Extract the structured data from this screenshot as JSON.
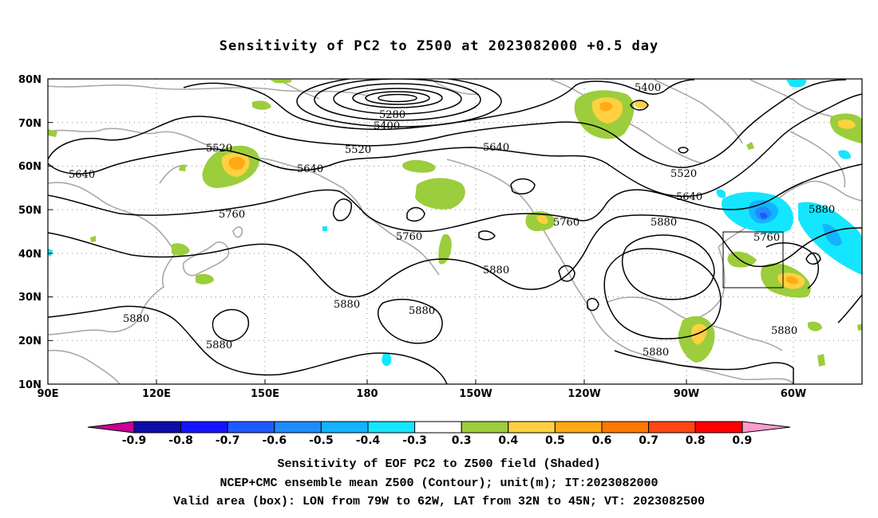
{
  "title": "Sensitivity of PC2 to Z500 at 2023082000 +0.5 day",
  "axes": {
    "lat_labels": [
      "80N",
      "70N",
      "60N",
      "50N",
      "40N",
      "30N",
      "20N",
      "10N"
    ],
    "lon_labels": [
      "90E",
      "120E",
      "150E",
      "180",
      "150W",
      "120W",
      "90W",
      "60W"
    ]
  },
  "contour_labels": {
    "c5280": "5280",
    "c5400a": "5400",
    "c5400b": "5400",
    "c5520a": "5520",
    "c5520b": "5520",
    "c5520c": "5520",
    "c5640a": "5640",
    "c5640b": "5640",
    "c5640c": "5640",
    "c5640d": "5640",
    "c5760a": "5760",
    "c5760b": "5760",
    "c5760c": "5760",
    "c5760d": "5760",
    "c5880a": "5880",
    "c5880b": "5880",
    "c5880c": "5880",
    "c5880d": "5880",
    "c5880e": "5880",
    "c5880f": "5880",
    "c5880g": "5880",
    "c5880h": "5880",
    "c5880i": "5880"
  },
  "colorbar": {
    "labels": [
      "-0.9",
      "-0.8",
      "-0.7",
      "-0.6",
      "-0.5",
      "-0.4",
      "-0.3",
      "0.3",
      "0.4",
      "0.5",
      "0.6",
      "0.7",
      "0.8",
      "0.9"
    ],
    "colors": [
      "#0d0da8",
      "#1414ff",
      "#1e5aff",
      "#1e8cff",
      "#12b4ff",
      "#14e6ff",
      "#ffffff",
      "#9ccd3c",
      "#ffd040",
      "#ffaa14",
      "#ff7800",
      "#ff4614",
      "#ff0000"
    ],
    "low_color": "#c80096",
    "high_color": "#ff9ccd"
  },
  "captions": {
    "line1": "Sensitivity of EOF PC2 to Z500 field (Shaded)",
    "line2": "NCEP+CMC ensemble mean Z500 (Contour); unit(m); IT:2023082000",
    "line3": "Valid area (box): LON from 79W to 62W, LAT from 32N to 45N; VT: 2023082500"
  }
}
